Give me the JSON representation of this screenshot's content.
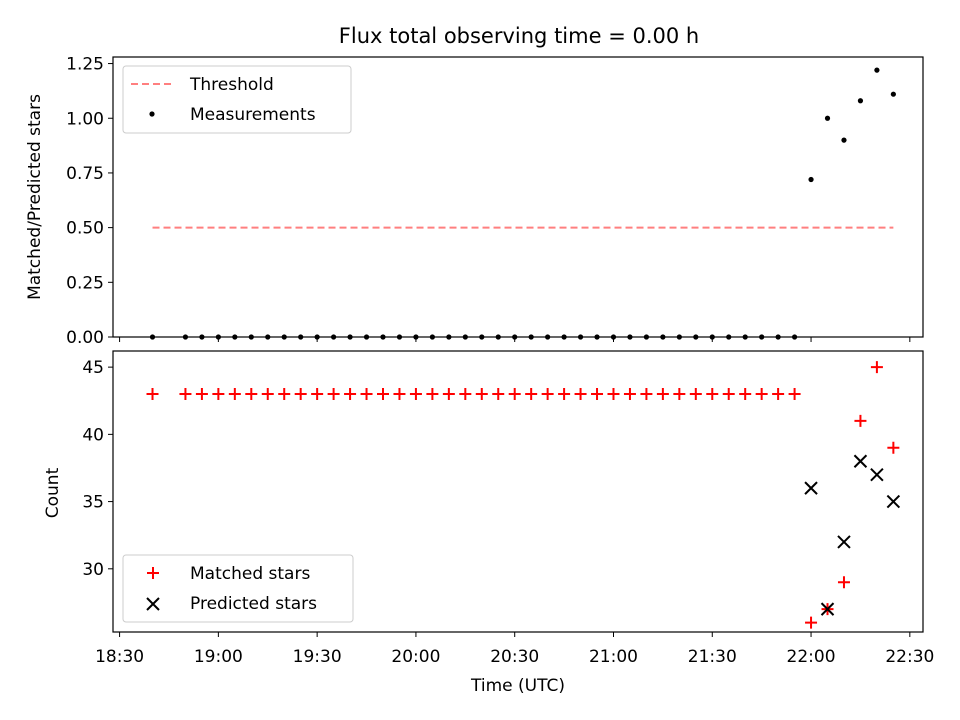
{
  "chart_data": [
    {
      "type": "scatter",
      "title": "Flux total observing time = 0.00 h",
      "xlabel": "",
      "ylabel": "Matched/Predicted stars",
      "ylim": [
        0,
        1.28
      ],
      "yticks": [
        "0.00",
        "0.25",
        "0.50",
        "0.75",
        "1.00",
        "1.25"
      ],
      "ytick_values": [
        0,
        0.25,
        0.5,
        0.75,
        1.0,
        1.25
      ],
      "legend_position": "upper-left",
      "grid": false,
      "series": [
        {
          "name": "Threshold",
          "kind": "line",
          "style": "dashed",
          "color": "#ff7f7f",
          "x": [
            "18:40",
            "22:25"
          ],
          "y": [
            0.5,
            0.5
          ]
        },
        {
          "name": "Measurements",
          "kind": "scatter",
          "marker": "dot",
          "color": "#000000",
          "x": [
            "18:40",
            "18:50",
            "18:55",
            "19:00",
            "19:05",
            "19:10",
            "19:15",
            "19:20",
            "19:25",
            "19:30",
            "19:35",
            "19:40",
            "19:45",
            "19:50",
            "19:55",
            "20:00",
            "20:05",
            "20:10",
            "20:15",
            "20:20",
            "20:25",
            "20:30",
            "20:35",
            "20:40",
            "20:45",
            "20:50",
            "20:55",
            "21:00",
            "21:05",
            "21:10",
            "21:15",
            "21:20",
            "21:25",
            "21:30",
            "21:35",
            "21:40",
            "21:45",
            "21:50",
            "21:55",
            "22:00",
            "22:05",
            "22:10",
            "22:15",
            "22:20",
            "22:25"
          ],
          "y": [
            0,
            0,
            0,
            0,
            0,
            0,
            0,
            0,
            0,
            0,
            0,
            0,
            0,
            0,
            0,
            0,
            0,
            0,
            0,
            0,
            0,
            0,
            0,
            0,
            0,
            0,
            0,
            0,
            0,
            0,
            0,
            0,
            0,
            0,
            0,
            0,
            0,
            0,
            0,
            0.72,
            1.0,
            0.9,
            1.08,
            1.22,
            1.11
          ]
        }
      ]
    },
    {
      "type": "scatter",
      "title": "",
      "xlabel": "Time (UTC)",
      "ylabel": "Count",
      "ylim": [
        25.3,
        46.2
      ],
      "yticks": [
        "30",
        "35",
        "40",
        "45"
      ],
      "ytick_values": [
        30,
        35,
        40,
        45
      ],
      "xlim": [
        "18:28",
        "22:34"
      ],
      "xticks": [
        "18:30",
        "19:00",
        "19:30",
        "20:00",
        "20:30",
        "21:00",
        "21:30",
        "22:00",
        "22:30"
      ],
      "legend_position": "lower-left",
      "grid": false,
      "series": [
        {
          "name": "Matched stars",
          "kind": "scatter",
          "marker": "plus",
          "color": "#ff0000",
          "x": [
            "18:40",
            "18:50",
            "18:55",
            "19:00",
            "19:05",
            "19:10",
            "19:15",
            "19:20",
            "19:25",
            "19:30",
            "19:35",
            "19:40",
            "19:45",
            "19:50",
            "19:55",
            "20:00",
            "20:05",
            "20:10",
            "20:15",
            "20:20",
            "20:25",
            "20:30",
            "20:35",
            "20:40",
            "20:45",
            "20:50",
            "20:55",
            "21:00",
            "21:05",
            "21:10",
            "21:15",
            "21:20",
            "21:25",
            "21:30",
            "21:35",
            "21:40",
            "21:45",
            "21:50",
            "21:55",
            "22:00",
            "22:05",
            "22:10",
            "22:15",
            "22:20",
            "22:25"
          ],
          "y": [
            43,
            43,
            43,
            43,
            43,
            43,
            43,
            43,
            43,
            43,
            43,
            43,
            43,
            43,
            43,
            43,
            43,
            43,
            43,
            43,
            43,
            43,
            43,
            43,
            43,
            43,
            43,
            43,
            43,
            43,
            43,
            43,
            43,
            43,
            43,
            43,
            43,
            43,
            43,
            26,
            27,
            29,
            41,
            45,
            39
          ]
        },
        {
          "name": "Predicted stars",
          "kind": "scatter",
          "marker": "x",
          "color": "#000000",
          "x": [
            "22:00",
            "22:05",
            "22:10",
            "22:15",
            "22:20",
            "22:25"
          ],
          "y": [
            36,
            27,
            32,
            38,
            37,
            35
          ]
        }
      ]
    }
  ]
}
